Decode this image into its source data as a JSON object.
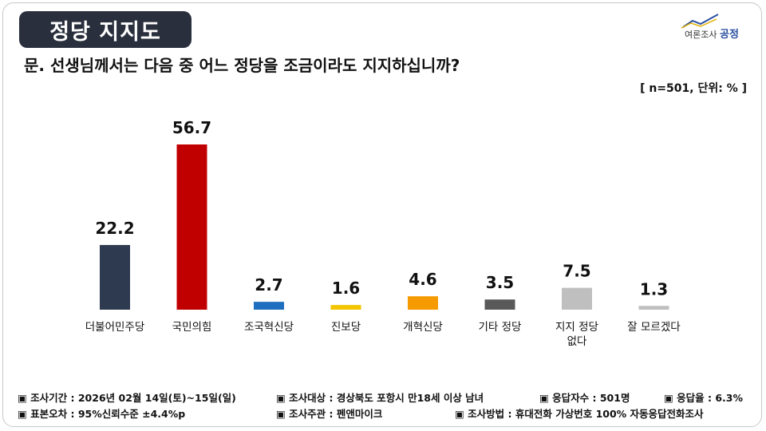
{
  "header": {
    "title": "정당 지지도",
    "logo_small": "여론조사",
    "logo_brand": "공정",
    "question": "문. 선생님께서는 다음 중 어느 정당을 조금이라도 지지하십니까?",
    "unit": "[ n=501, 단위: % ]"
  },
  "chart_data": {
    "type": "bar",
    "categories": [
      "더불어민주당",
      "국민의힘",
      "조국혁신당",
      "진보당",
      "개혁신당",
      "기타 정당",
      "지지 정당 없다",
      "잘 모르겠다"
    ],
    "category_lines": [
      [
        "더불어민주당"
      ],
      [
        "국민의힘"
      ],
      [
        "조국혁신당"
      ],
      [
        "진보당"
      ],
      [
        "개혁신당"
      ],
      [
        "기타 정당"
      ],
      [
        "지지 정당",
        "없다"
      ],
      [
        "잘 모르겠다"
      ]
    ],
    "values": [
      22.2,
      56.7,
      2.7,
      1.6,
      4.6,
      3.5,
      7.5,
      1.3
    ],
    "value_labels": [
      "22.2",
      "56.7",
      "2.7",
      "1.6",
      "4.6",
      "3.5",
      "7.5",
      "1.3"
    ],
    "colors": [
      "#2e3a50",
      "#c00000",
      "#1f6fc0",
      "#f5c400",
      "#f59a00",
      "#595959",
      "#bfbfbf",
      "#bfbfbf"
    ],
    "ylim": [
      0,
      60
    ],
    "grid": false,
    "legend": "none"
  },
  "footer": {
    "row1": [
      "▣ 조사기간 : 2026년 02월 14일(토)~15일(일)",
      "▣ 조사대상 : 경상북도 포항시 만18세 이상 남녀",
      "▣ 응답자수 : 501명",
      "▣ 응답율 : 6.3%"
    ],
    "row2": [
      "▣ 표본오차 : 95%신뢰수준 ±4.4%p",
      "▣ 조사주관 : 펜앤마이크",
      "▣ 조사방법 : 휴대전화 가상번호 100% 자동응답전화조사"
    ]
  }
}
